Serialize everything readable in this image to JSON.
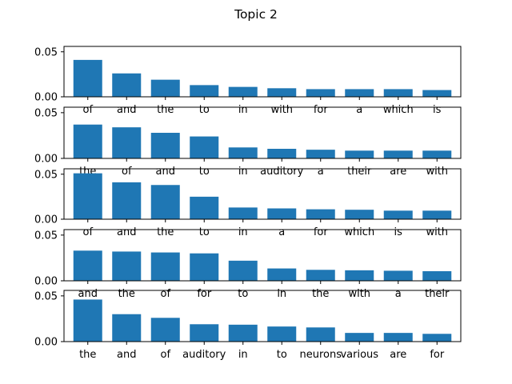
{
  "figure": {
    "title": "Topic 2"
  },
  "colors": {
    "bar": "#1f77b4",
    "background": "#ffffff",
    "axis": "#000000"
  },
  "chart_data": [
    {
      "type": "bar",
      "categories": [
        "of",
        "and",
        "the",
        "to",
        "in",
        "with",
        "for",
        "a",
        "which",
        "is"
      ],
      "values": [
        0.041,
        0.026,
        0.019,
        0.013,
        0.011,
        0.0095,
        0.0085,
        0.0085,
        0.0085,
        0.0075
      ],
      "yticks": [
        "0.00",
        "0.05"
      ],
      "ylim": [
        0,
        0.056
      ]
    },
    {
      "type": "bar",
      "categories": [
        "the",
        "of",
        "and",
        "to",
        "in",
        "auditory",
        "a",
        "their",
        "are",
        "with"
      ],
      "values": [
        0.037,
        0.034,
        0.028,
        0.024,
        0.012,
        0.0105,
        0.0095,
        0.0085,
        0.0085,
        0.0085
      ],
      "yticks": [
        "0.00",
        "0.05"
      ],
      "ylim": [
        0,
        0.056
      ]
    },
    {
      "type": "bar",
      "categories": [
        "of",
        "and",
        "the",
        "to",
        "in",
        "a",
        "for",
        "which",
        "is",
        "with"
      ],
      "values": [
        0.051,
        0.041,
        0.038,
        0.025,
        0.013,
        0.012,
        0.011,
        0.0105,
        0.0095,
        0.0095
      ],
      "yticks": [
        "0.00",
        "0.05"
      ],
      "ylim": [
        0,
        0.056
      ]
    },
    {
      "type": "bar",
      "categories": [
        "and",
        "the",
        "of",
        "for",
        "to",
        "in",
        "the",
        "with",
        "a",
        "their"
      ],
      "values": [
        0.033,
        0.032,
        0.031,
        0.03,
        0.022,
        0.0135,
        0.012,
        0.0115,
        0.011,
        0.0105
      ],
      "yticks": [
        "0.00",
        "0.05"
      ],
      "ylim": [
        0,
        0.056
      ]
    },
    {
      "type": "bar",
      "categories": [
        "the",
        "and",
        "of",
        "auditory",
        "in",
        "to",
        "neurons",
        "various",
        "are",
        "for"
      ],
      "values": [
        0.046,
        0.03,
        0.026,
        0.019,
        0.0185,
        0.0165,
        0.0155,
        0.0095,
        0.0095,
        0.0085
      ],
      "yticks": [
        "0.00",
        "0.05"
      ],
      "ylim": [
        0,
        0.056
      ]
    }
  ]
}
